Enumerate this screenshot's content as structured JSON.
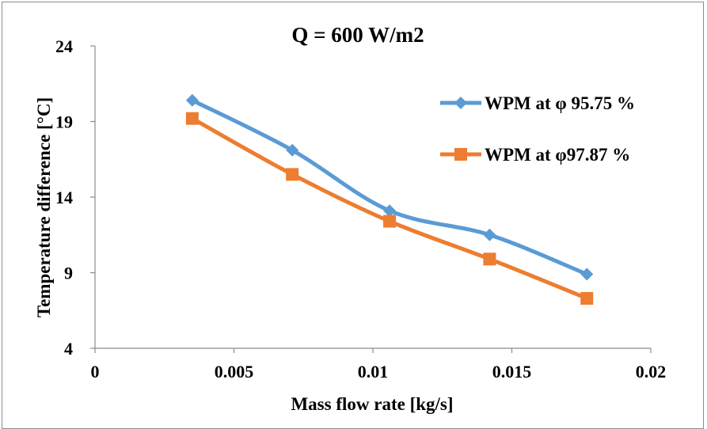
{
  "chart_data": {
    "type": "line",
    "title": "Q = 600 W/m2",
    "xlabel": "Mass flow rate [kg/s]",
    "ylabel": "Temperature difference [°C]",
    "xlim": [
      0,
      0.02
    ],
    "ylim": [
      4,
      24
    ],
    "x_ticks": [
      "0",
      "0.005",
      "0.01",
      "0.015",
      "0.02"
    ],
    "y_ticks": [
      "4",
      "9",
      "14",
      "19",
      "24"
    ],
    "x_tick_values": [
      0,
      0.005,
      0.01,
      0.015,
      0.02
    ],
    "y_tick_values": [
      4,
      9,
      14,
      19,
      24
    ],
    "grid": false,
    "legend_position": "right",
    "series": [
      {
        "name": "WPM at φ 95.75 %",
        "color": "#5b9bd5",
        "marker": "diamond",
        "x": [
          0.0035,
          0.0071,
          0.0106,
          0.0142,
          0.0177
        ],
        "y": [
          20.4,
          17.1,
          13.1,
          11.5,
          8.9
        ]
      },
      {
        "name": "WPM at φ97.87 %",
        "color": "#ed7d31",
        "marker": "square",
        "x": [
          0.0035,
          0.0071,
          0.0106,
          0.0142,
          0.0177
        ],
        "y": [
          19.2,
          15.5,
          12.4,
          9.9,
          7.3
        ]
      }
    ]
  }
}
